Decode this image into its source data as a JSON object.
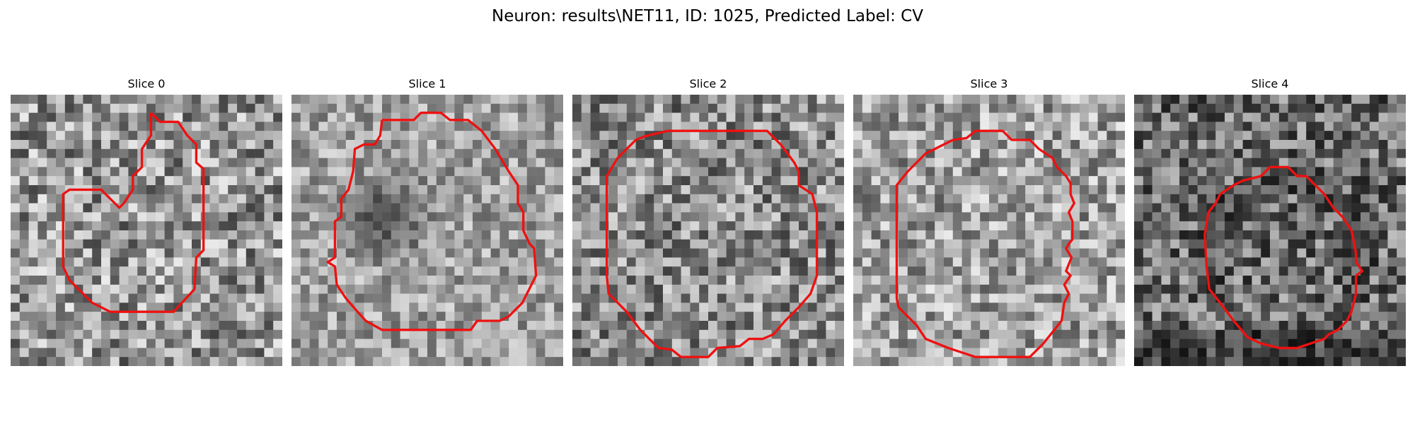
{
  "suptitle": "Neuron: results\\NET11, ID: 1025, Predicted Label: CV",
  "colors": {
    "contour": "#ee1111",
    "background": "#ffffff",
    "colormap": "gray"
  },
  "panels": [
    {
      "title": "Slice 0"
    },
    {
      "title": "Slice 1"
    },
    {
      "title": "Slice 2"
    },
    {
      "title": "Slice 3"
    },
    {
      "title": "Slice 4"
    }
  ]
}
